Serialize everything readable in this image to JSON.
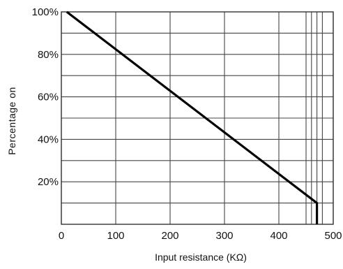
{
  "chart_data": {
    "type": "line",
    "title": "",
    "xlabel": "Input resistance (KΩ)",
    "ylabel": "Percentage on",
    "xlim": [
      0,
      500
    ],
    "ylim": [
      0,
      100
    ],
    "x_ticks": [
      0,
      100,
      200,
      300,
      400,
      500
    ],
    "x_tick_labels": [
      "0",
      "100",
      "200",
      "300",
      "400",
      "500"
    ],
    "y_ticks": [
      20,
      40,
      60,
      80,
      100
    ],
    "y_tick_labels": [
      "20%",
      "40%",
      "60%",
      "80%",
      "100%"
    ],
    "grid": true,
    "x_grid": [
      0,
      100,
      200,
      300,
      400,
      450,
      460,
      470,
      480,
      500
    ],
    "y_grid": [
      0,
      10,
      20,
      30,
      40,
      50,
      60,
      70,
      80,
      90,
      100
    ],
    "series": [
      {
        "x": [
          10,
          470,
          470
        ],
        "y": [
          100,
          10,
          0
        ],
        "color": "#000000"
      }
    ]
  }
}
